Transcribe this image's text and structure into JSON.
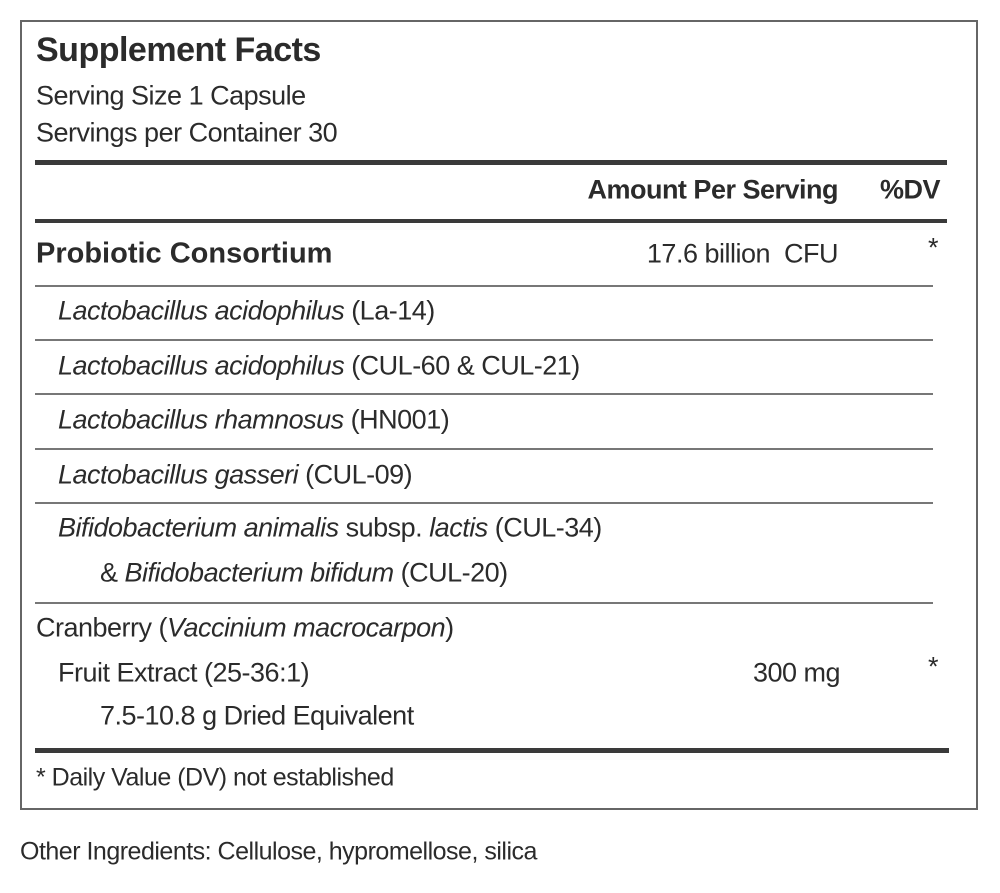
{
  "title": "Supplement Facts",
  "serving_size": "Serving Size 1 Capsule",
  "servings_per_container": "Servings per Container 30",
  "header": {
    "amount": "Amount Per Serving",
    "dv": "%DV"
  },
  "rows": [
    {
      "lines": [
        [
          {
            "text": "Probiotic Consortium",
            "bold": true
          }
        ]
      ],
      "amount": "17.6 billion  CFU",
      "dv": "*"
    },
    {
      "lines": [
        [
          {
            "text": "Lactobacillus acidophilus",
            "italic": true
          },
          {
            "text": " (La-14)"
          }
        ]
      ]
    },
    {
      "lines": [
        [
          {
            "text": "Lactobacillus acidophilus",
            "italic": true
          },
          {
            "text": " (CUL-60 & CUL-21)"
          }
        ]
      ]
    },
    {
      "lines": [
        [
          {
            "text": "Lactobacillus rhamnosus",
            "italic": true
          },
          {
            "text": " (HN001)"
          }
        ]
      ]
    },
    {
      "lines": [
        [
          {
            "text": "Lactobacillus gasseri",
            "italic": true
          },
          {
            "text": " (CUL-09)"
          }
        ]
      ]
    },
    {
      "lines": [
        [
          {
            "text": "Bifidobacterium animalis",
            "italic": true
          },
          {
            "text": " subsp. "
          },
          {
            "text": "lactis",
            "italic": true
          },
          {
            "text": " (CUL-34)"
          }
        ],
        [
          {
            "text": "& "
          },
          {
            "text": "Bifidobacterium bifidum",
            "italic": true
          },
          {
            "text": " (CUL-20)"
          }
        ]
      ]
    },
    {
      "lines": [
        [
          {
            "text": "Cranberry ("
          },
          {
            "text": "Vaccinium macrocarpon",
            "italic": true
          },
          {
            "text": ")"
          }
        ],
        [
          {
            "text": "Fruit Extract (25-36:1)"
          }
        ],
        [
          {
            "text": "7.5-10.8 g Dried Equivalent"
          }
        ]
      ],
      "amount": "300 mg",
      "dv": "*"
    }
  ],
  "footnote": "* Daily Value (DV) not established",
  "other_ingredients": "Other Ingredients: Cellulose, hypromellose, silica"
}
